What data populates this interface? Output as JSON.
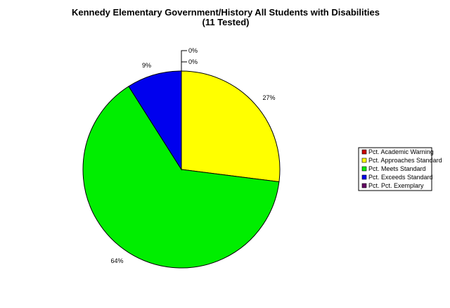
{
  "chart_data": {
    "type": "pie",
    "title": "Kennedy Elementary Government/History All Students with Disabilities",
    "subtitle": "(11 Tested)",
    "slices": [
      {
        "label": "Pct. Academic Warning",
        "value": 0,
        "display": "0%",
        "color": "#cc0000"
      },
      {
        "label": "Pct. Approaches Standard",
        "value": 27,
        "display": "27%",
        "color": "#ffff00"
      },
      {
        "label": "Pct. Meets Standard",
        "value": 64,
        "display": "64%",
        "color": "#00ee00"
      },
      {
        "label": "Pct. Exceeds Standard",
        "value": 9,
        "display": "9%",
        "color": "#0000ee"
      },
      {
        "label": "Pct. Pct. Exemplary",
        "value": 0,
        "display": "0%",
        "color": "#660066"
      }
    ],
    "legend_position": "right"
  }
}
